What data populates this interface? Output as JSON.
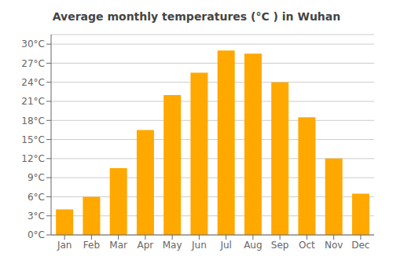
{
  "chart_data": {
    "type": "bar",
    "title": "Average monthly temperatures (°C ) in Wuhan",
    "categories": [
      "Jan",
      "Feb",
      "Mar",
      "Apr",
      "May",
      "Jun",
      "Jul",
      "Aug",
      "Sep",
      "Oct",
      "Nov",
      "Dec"
    ],
    "values": [
      4,
      6,
      10.5,
      16.5,
      22,
      25.5,
      29,
      28.5,
      24,
      18.5,
      12,
      6.5
    ],
    "color": "#FFA800",
    "ylim": [
      0,
      31.5
    ],
    "yticks": [
      {
        "value": 0,
        "label": "0°C"
      },
      {
        "value": 3,
        "label": "3°C"
      },
      {
        "value": 6,
        "label": "6°C"
      },
      {
        "value": 9,
        "label": "9°C"
      },
      {
        "value": 12,
        "label": "12°C"
      },
      {
        "value": 15,
        "label": "15°C"
      },
      {
        "value": 18,
        "label": "18°C"
      },
      {
        "value": 21,
        "label": "21°C"
      },
      {
        "value": 24,
        "label": "24°C"
      },
      {
        "value": 27,
        "label": "27°C"
      },
      {
        "value": 30,
        "label": "30°C"
      }
    ],
    "grid": true
  }
}
